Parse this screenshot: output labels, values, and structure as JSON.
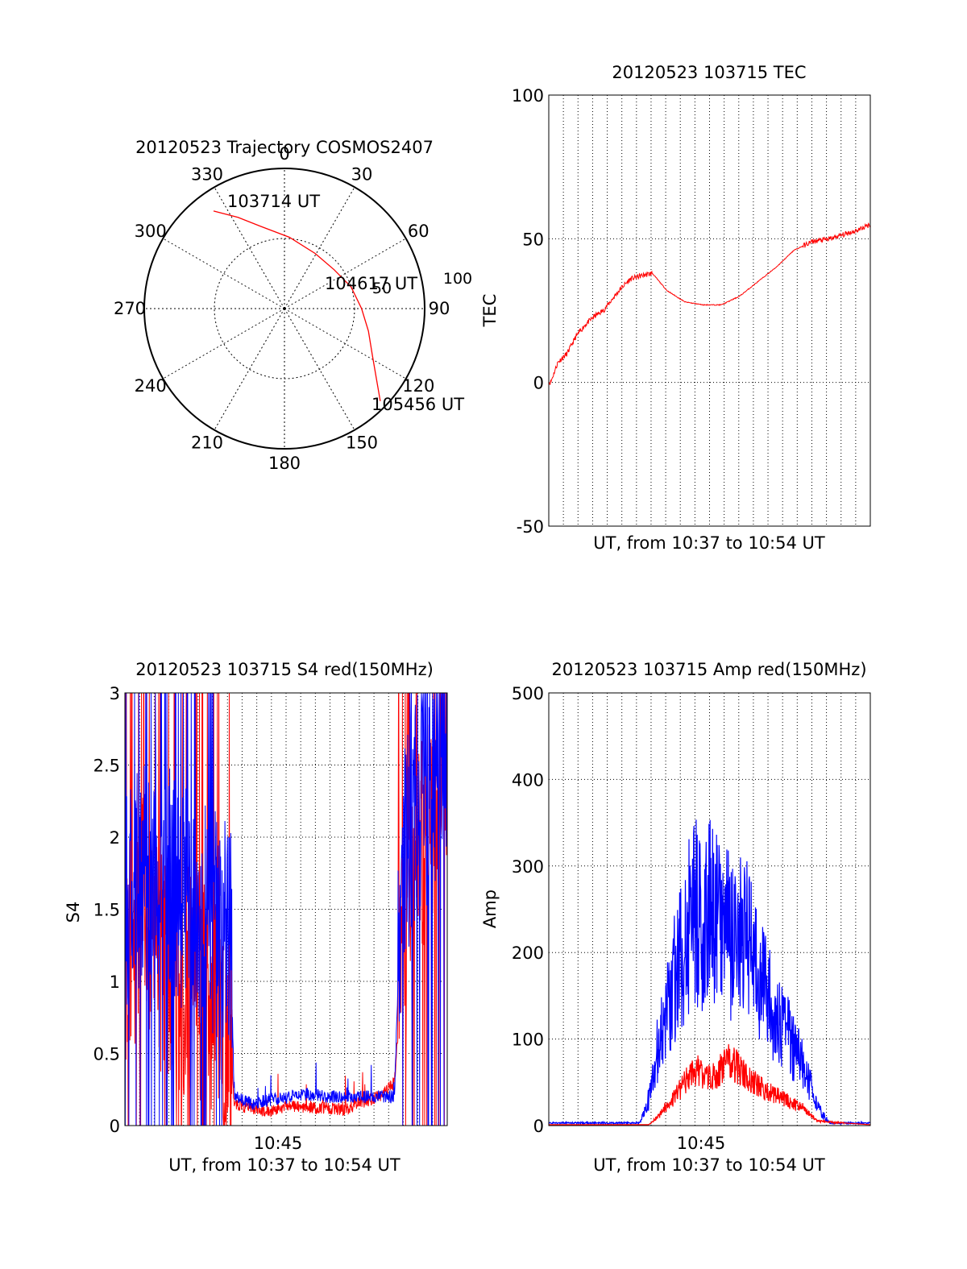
{
  "chart_data": [
    {
      "type": "polar",
      "title": "20120523 Trajectory COSMOS2407",
      "angle_labels": [
        "0",
        "30",
        "60",
        "90",
        "120",
        "150",
        "180",
        "210",
        "240",
        "270",
        "300",
        "330"
      ],
      "radial_labels": [
        "50",
        "100"
      ],
      "rlim": [
        0,
        100
      ],
      "grid": true,
      "series": [
        {
          "color": "#ff0000",
          "points": [
            {
              "az": 324,
              "r": 86
            },
            {
              "az": 333,
              "r": 73
            },
            {
              "az": 344,
              "r": 61
            },
            {
              "az": 4,
              "r": 51
            },
            {
              "az": 29,
              "r": 45
            },
            {
              "az": 52,
              "r": 45
            },
            {
              "az": 72,
              "r": 50
            },
            {
              "az": 90,
              "r": 55
            },
            {
              "az": 105,
              "r": 62
            },
            {
              "az": 118,
              "r": 71
            },
            {
              "az": 127,
              "r": 82
            },
            {
              "az": 134,
              "r": 95
            }
          ]
        }
      ],
      "annotations": [
        "103714 UT",
        "104617 UT",
        "105456 UT"
      ]
    },
    {
      "type": "line",
      "title": "20120523 103715 TEC",
      "xlabel": "UT, from 10:37 to 10:54 UT",
      "ylabel": "TEC",
      "xlim": [
        0,
        17.7
      ],
      "ylim": [
        -50,
        100
      ],
      "yticks": [
        "100",
        "50",
        "0",
        "-50"
      ],
      "grid": true,
      "series": [
        {
          "color": "#ff0000",
          "x": [
            0.1,
            0.5,
            1.0,
            1.5,
            2.0,
            2.5,
            3.0,
            3.5,
            4.0,
            4.5,
            5.0,
            5.7,
            6.5,
            7.5,
            8.5,
            9.5,
            10.5,
            11.5,
            12.5,
            13.5,
            14.5,
            15.5,
            16.5,
            17.0,
            17.7
          ],
          "y": [
            0,
            7,
            10,
            16,
            20,
            23,
            25,
            29,
            33,
            36,
            37,
            38,
            32,
            28,
            27,
            27,
            30,
            35,
            40,
            46,
            49,
            50,
            52,
            53,
            55
          ]
        }
      ]
    },
    {
      "type": "line",
      "title": "20120523 103715 S4 red(150MHz)",
      "xlabel": "UT, from 10:37 to 10:54 UT",
      "ylabel": "S4",
      "xlim": [
        0,
        17.7
      ],
      "ylim": [
        0,
        3
      ],
      "xticks": [
        "10:45"
      ],
      "yticks": [
        "3",
        "2.5",
        "2",
        "1.5",
        "1",
        "0.5",
        "0"
      ],
      "grid": true,
      "series": [
        {
          "color": "#ff0000",
          "x": [
            0.3,
            1.0,
            2.0,
            3.0,
            4.0,
            5.0,
            5.8,
            6.0,
            7.0,
            8.0,
            9.0,
            10.0,
            11.0,
            12.0,
            13.0,
            14.0,
            14.8,
            15.2,
            16.0,
            17.0,
            17.7
          ],
          "y": [
            1.2,
            1.5,
            1.1,
            1.0,
            1.0,
            0.8,
            0.6,
            0.15,
            0.12,
            0.1,
            0.14,
            0.13,
            0.12,
            0.11,
            0.16,
            0.2,
            0.3,
            1.0,
            1.8,
            2.2,
            2.6
          ]
        },
        {
          "color": "#0000ff",
          "x": [
            0.3,
            1.0,
            2.0,
            3.0,
            4.0,
            5.0,
            5.8,
            6.0,
            7.0,
            8.0,
            9.0,
            10.0,
            11.0,
            12.0,
            13.0,
            14.0,
            14.8,
            15.2,
            16.0,
            17.0,
            17.7
          ],
          "y": [
            1.6,
            1.7,
            1.8,
            1.6,
            1.5,
            1.4,
            1.3,
            0.2,
            0.15,
            0.18,
            0.2,
            0.22,
            0.2,
            0.2,
            0.2,
            0.2,
            0.2,
            1.8,
            2.2,
            2.4,
            2.7
          ]
        }
      ]
    },
    {
      "type": "line",
      "title": "20120523 103715 Amp red(150MHz)",
      "xlabel": "UT, from 10:37 to 10:54 UT",
      "ylabel": "Amp",
      "xlim": [
        0,
        17.7
      ],
      "ylim": [
        0,
        500
      ],
      "xticks": [
        "10:45"
      ],
      "yticks": [
        "500",
        "400",
        "300",
        "200",
        "100",
        "0"
      ],
      "grid": true,
      "series": [
        {
          "color": "#0000ff",
          "x": [
            0,
            5.0,
            5.5,
            6.0,
            7.0,
            8.0,
            8.5,
            9.0,
            10.0,
            11.0,
            12.0,
            13.0,
            14.0,
            14.8,
            15.5,
            17.7
          ],
          "y": [
            2,
            2,
            30,
            90,
            180,
            250,
            230,
            260,
            220,
            210,
            150,
            110,
            70,
            20,
            2,
            2
          ]
        },
        {
          "color": "#ff0000",
          "x": [
            0,
            5.5,
            6.0,
            7.0,
            8.0,
            9.0,
            10.0,
            11.0,
            12.0,
            13.0,
            14.0,
            14.8,
            17.7
          ],
          "y": [
            1,
            1,
            10,
            35,
            65,
            55,
            75,
            55,
            40,
            30,
            20,
            5,
            1
          ]
        }
      ]
    }
  ]
}
